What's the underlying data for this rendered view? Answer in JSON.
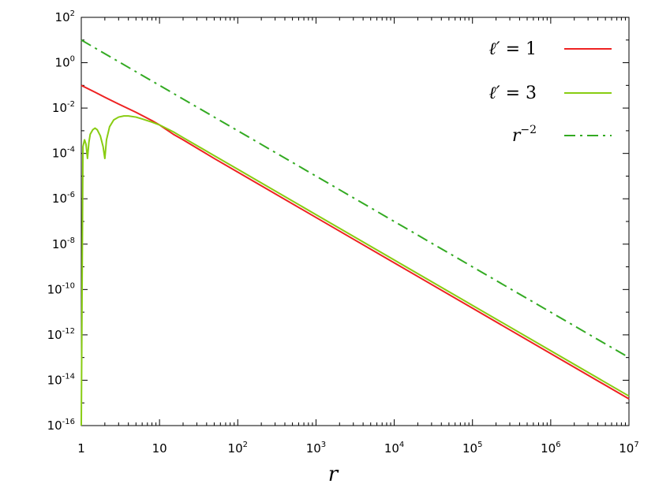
{
  "chart_data": {
    "type": "line",
    "xscale": "log",
    "yscale": "log",
    "xlim": [
      1,
      10000000
    ],
    "ylim": [
      1e-16,
      100
    ],
    "xlabel": "r",
    "ylabel": "",
    "grid": false,
    "legend_position": "top-right",
    "xticks": [
      {
        "base": "1",
        "exp": ""
      },
      {
        "base": "10",
        "exp": ""
      },
      {
        "base": "10",
        "exp": "2"
      },
      {
        "base": "10",
        "exp": "3"
      },
      {
        "base": "10",
        "exp": "4"
      },
      {
        "base": "10",
        "exp": "5"
      },
      {
        "base": "10",
        "exp": "6"
      },
      {
        "base": "10",
        "exp": "7"
      }
    ],
    "yticks": [
      {
        "base": "10",
        "exp": "2"
      },
      {
        "base": "10",
        "exp": "0"
      },
      {
        "base": "10",
        "exp": "-2"
      },
      {
        "base": "10",
        "exp": "-4"
      },
      {
        "base": "10",
        "exp": "-6"
      },
      {
        "base": "10",
        "exp": "-8"
      },
      {
        "base": "10",
        "exp": "-10"
      },
      {
        "base": "10",
        "exp": "-12"
      },
      {
        "base": "10",
        "exp": "-14"
      },
      {
        "base": "10",
        "exp": "-16"
      }
    ],
    "series": [
      {
        "legend_label": "ℓ′ = 1",
        "color": "#ee2222",
        "style": "solid",
        "x": [
          1,
          1.5,
          2,
          3,
          5,
          8,
          10,
          15,
          20,
          50,
          100,
          1000,
          10000,
          100000,
          1000000,
          10000000
        ],
        "y": [
          0.1,
          0.05,
          0.03,
          0.015,
          0.0065,
          0.0028,
          0.0018,
          0.0007,
          0.0004,
          6e-05,
          1.5e-05,
          1.5e-07,
          1.5e-09,
          1.5e-11,
          1.5e-13,
          1.5e-15
        ]
      },
      {
        "legend_label": "ℓ′ = 3",
        "color": "#88cc11",
        "style": "solid",
        "x": [
          1,
          1.05,
          1.1,
          1.15,
          1.2,
          1.25,
          1.3,
          1.4,
          1.5,
          1.6,
          1.75,
          1.9,
          2.0,
          2.1,
          2.3,
          2.6,
          3,
          3.5,
          4,
          5,
          6,
          8,
          10,
          15,
          20,
          50,
          100,
          1000,
          10000,
          100000,
          1000000,
          10000000
        ],
        "y": [
          1e-16,
          0.0002,
          0.0004,
          0.00025,
          6e-05,
          0.0003,
          0.0007,
          0.0011,
          0.0013,
          0.0011,
          0.0006,
          0.0002,
          6e-05,
          0.0004,
          0.0015,
          0.003,
          0.004,
          0.0045,
          0.0045,
          0.004,
          0.0033,
          0.0024,
          0.0018,
          0.0009,
          0.0005,
          8e-05,
          2e-05,
          2e-07,
          2e-09,
          2e-11,
          2e-13,
          2e-15
        ]
      },
      {
        "legend_label": "r^−2",
        "color": "#33aa22",
        "style": "dashdot",
        "x": [
          1,
          10000000
        ],
        "y": [
          10,
          1e-13
        ]
      }
    ]
  }
}
